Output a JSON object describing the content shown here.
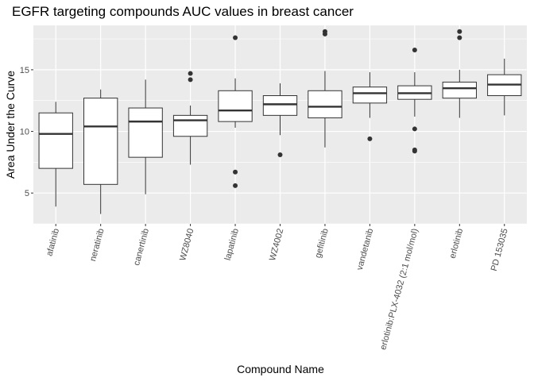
{
  "chart_data": {
    "type": "boxplot",
    "title": "EGFR targeting compounds AUC values in breast cancer",
    "xlabel": "Compound Name",
    "ylabel": "Area Under the Curve",
    "ylim": [
      2.5,
      18.6
    ],
    "yticks": [
      5,
      10,
      15
    ],
    "grid": true,
    "background": "#ebebeb",
    "grid_color": "#ffffff",
    "categories": [
      "afatinib",
      "neratinib",
      "canertinib",
      "WZ8040",
      "lapatinib",
      "WZ4002",
      "gefitinib",
      "vandetanib",
      "erlotinib:PLX-4032 (2:1 mol/mol)",
      "erlotinib",
      "PD 153035"
    ],
    "boxes": [
      {
        "min": 3.9,
        "q1": 7.0,
        "median": 9.8,
        "q3": 11.5,
        "max": 12.4,
        "outliers": []
      },
      {
        "min": 3.3,
        "q1": 5.7,
        "median": 10.4,
        "q3": 12.7,
        "max": 13.4,
        "outliers": []
      },
      {
        "min": 4.9,
        "q1": 7.9,
        "median": 10.8,
        "q3": 11.9,
        "max": 14.2,
        "outliers": []
      },
      {
        "min": 7.3,
        "q1": 9.6,
        "median": 10.9,
        "q3": 11.3,
        "max": 12.1,
        "outliers": [
          14.2,
          14.7
        ]
      },
      {
        "min": 10.3,
        "q1": 10.8,
        "median": 11.7,
        "q3": 13.3,
        "max": 14.3,
        "outliers": [
          5.6,
          6.7,
          17.6
        ]
      },
      {
        "min": 9.7,
        "q1": 11.3,
        "median": 12.2,
        "q3": 12.9,
        "max": 13.9,
        "outliers": [
          8.1
        ]
      },
      {
        "min": 8.7,
        "q1": 11.1,
        "median": 12.0,
        "q3": 13.3,
        "max": 14.9,
        "outliers": [
          17.9,
          18.1
        ]
      },
      {
        "min": 11.1,
        "q1": 12.3,
        "median": 13.1,
        "q3": 13.6,
        "max": 14.8,
        "outliers": [
          9.4
        ]
      },
      {
        "min": 11.2,
        "q1": 12.6,
        "median": 13.1,
        "q3": 13.7,
        "max": 14.8,
        "outliers": [
          8.4,
          8.5,
          10.2,
          16.6
        ]
      },
      {
        "min": 11.1,
        "q1": 12.7,
        "median": 13.5,
        "q3": 14.0,
        "max": 15.0,
        "outliers": [
          17.6,
          18.1
        ]
      },
      {
        "min": 11.3,
        "q1": 12.9,
        "median": 13.8,
        "q3": 14.6,
        "max": 15.9,
        "outliers": []
      }
    ]
  }
}
